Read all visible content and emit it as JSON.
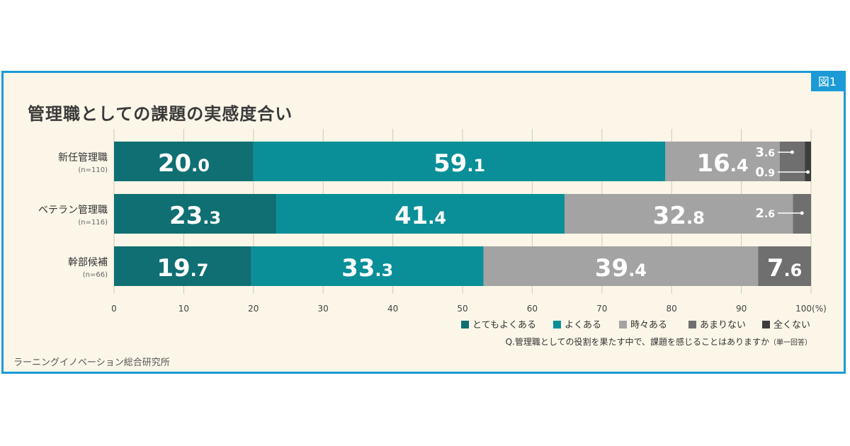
{
  "figure_tag": "図1",
  "source": "ラーニングイノベーション総合研究所",
  "chart_data": {
    "type": "bar",
    "orientation": "horizontal",
    "stacked": true,
    "title": "管理職としての課題の実感度合い",
    "question": "Q.管理職としての役割を果たす中で、課題を感じることはありますか",
    "question_note": "（単一回答）",
    "xlim": [
      0,
      100
    ],
    "x_unit": "(%)",
    "x_ticks": [
      "0",
      "10",
      "20",
      "30",
      "40",
      "50",
      "60",
      "70",
      "80",
      "90",
      "100"
    ],
    "grid": true,
    "legend_position": "bottom-right",
    "categories": [
      {
        "label": "新任管理職",
        "n": "(n=110)"
      },
      {
        "label": "ベテラン管理職",
        "n": "(n=116)"
      },
      {
        "label": "幹部候補",
        "n": "(n=66)"
      }
    ],
    "series": [
      {
        "name": "とてもよくある",
        "color": "#0f6f72",
        "values": [
          20.0,
          23.3,
          19.7
        ],
        "labels": [
          "20.0",
          "23.3",
          "19.7"
        ]
      },
      {
        "name": "よくある",
        "color": "#0a8f98",
        "values": [
          59.1,
          41.4,
          33.3
        ],
        "labels": [
          "59.1",
          "41.4",
          "33.3"
        ]
      },
      {
        "name": "時々ある",
        "color": "#a3a3a3",
        "values": [
          16.4,
          32.8,
          39.4
        ],
        "labels": [
          "16.4",
          "32.8",
          "39.4"
        ]
      },
      {
        "name": "あまりない",
        "color": "#6f6f6f",
        "values": [
          3.6,
          2.6,
          7.6
        ],
        "labels": [
          "3.6",
          "2.6",
          "7.6"
        ]
      },
      {
        "name": "全くない",
        "color": "#3d3d3d",
        "values": [
          0.9,
          0,
          0
        ],
        "labels": [
          "0.9",
          "",
          ""
        ]
      }
    ]
  }
}
